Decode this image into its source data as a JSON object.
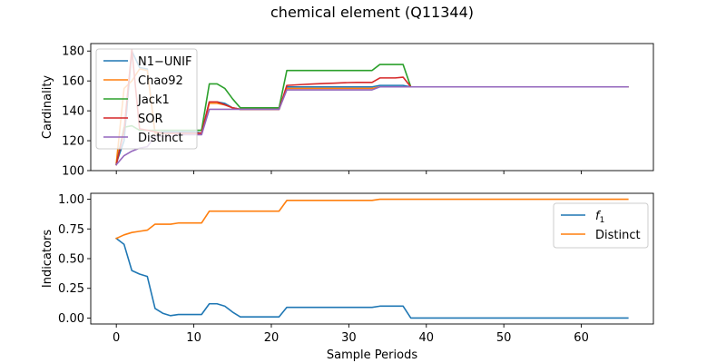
{
  "figure": {
    "title": "chemical element (Q11344)"
  },
  "chart_data": [
    {
      "type": "line",
      "ylabel": "Cardinality",
      "xlabel": "",
      "xlim": [
        -3.3,
        69.3
      ],
      "ylim": [
        100,
        185
      ],
      "yticks": [
        100,
        120,
        140,
        160,
        180
      ],
      "xticks": [
        0,
        10,
        20,
        30,
        40,
        50,
        60
      ],
      "show_x_tick_labels": false,
      "grid": false,
      "legend_position": "top-left",
      "series": [
        {
          "name": "N1−UNIF",
          "color": "#1f77b4",
          "x": [
            0,
            1,
            2,
            3,
            4,
            5,
            6,
            7,
            8,
            9,
            10,
            11,
            12,
            13,
            14,
            15,
            16,
            17,
            18,
            19,
            20,
            21,
            22,
            23,
            24,
            25,
            26,
            27,
            28,
            29,
            30,
            31,
            32,
            33,
            34,
            35,
            36,
            37,
            38,
            39,
            40,
            41,
            42,
            43,
            44,
            45,
            46,
            47,
            48,
            49,
            50,
            51,
            52,
            53,
            54,
            55,
            56,
            57,
            58,
            59,
            60,
            61,
            62,
            63,
            64,
            65,
            66
          ],
          "y": [
            105,
            120,
            180,
            169,
            168,
            125,
            126,
            126,
            126,
            126,
            126,
            125,
            146,
            146,
            145,
            142,
            141,
            141,
            141,
            141,
            141,
            141,
            156,
            156,
            156,
            156,
            156,
            156,
            156,
            156,
            156,
            156,
            156,
            156,
            157,
            157,
            157,
            157,
            156,
            156,
            156,
            156,
            156,
            156,
            156,
            156,
            156,
            156,
            156,
            156,
            156,
            156,
            156,
            156,
            156,
            156,
            156,
            156,
            156,
            156,
            156,
            156,
            156,
            156,
            156,
            156,
            156
          ]
        },
        {
          "name": "Chao92",
          "color": "#ff7f0e",
          "x": [
            0,
            1,
            2,
            3,
            4,
            5,
            6,
            7,
            8,
            9,
            10,
            11,
            12,
            13,
            14,
            15,
            16,
            17,
            18,
            19,
            20,
            21,
            22,
            23,
            24,
            25,
            26,
            27,
            28,
            29,
            30,
            31,
            32,
            33,
            34,
            35,
            36,
            37,
            38,
            39,
            40,
            41,
            42,
            43,
            44,
            45,
            46,
            47,
            48,
            49,
            50,
            51,
            52,
            53,
            54,
            55,
            56,
            57,
            58,
            59,
            60,
            61,
            62,
            63,
            64,
            65,
            66
          ],
          "y": [
            105,
            155,
            160,
            168,
            167,
            125,
            125,
            125,
            125,
            125,
            125,
            125,
            145,
            145,
            144,
            142,
            141,
            141,
            141,
            141,
            141,
            141,
            155,
            155,
            155,
            155,
            155,
            155,
            155,
            155,
            155,
            155,
            155,
            155,
            156,
            156,
            156,
            156,
            156,
            156,
            156,
            156,
            156,
            156,
            156,
            156,
            156,
            156,
            156,
            156,
            156,
            156,
            156,
            156,
            156,
            156,
            156,
            156,
            156,
            156,
            156,
            156,
            156,
            156,
            156,
            156,
            156
          ]
        },
        {
          "name": "Jack1",
          "color": "#2ca02c",
          "x": [
            0,
            1,
            2,
            3,
            4,
            5,
            6,
            7,
            8,
            9,
            10,
            11,
            12,
            13,
            14,
            15,
            16,
            17,
            18,
            19,
            20,
            21,
            22,
            23,
            24,
            25,
            26,
            27,
            28,
            29,
            30,
            31,
            32,
            33,
            34,
            35,
            36,
            37,
            38,
            39,
            40,
            41,
            42,
            43,
            44,
            45,
            46,
            47,
            48,
            49,
            50,
            51,
            52,
            53,
            54,
            55,
            56,
            57,
            58,
            59,
            60,
            61,
            62,
            63,
            64,
            65,
            66
          ],
          "y": [
            104,
            129,
            130,
            127,
            127,
            127,
            127,
            127,
            127,
            127,
            127,
            127,
            158,
            158,
            155,
            148,
            142,
            142,
            142,
            142,
            142,
            142,
            167,
            167,
            167,
            167,
            167,
            167,
            167,
            167,
            167,
            167,
            167,
            167,
            171,
            171,
            171,
            171,
            156,
            156,
            156,
            156,
            156,
            156,
            156,
            156,
            156,
            156,
            156,
            156,
            156,
            156,
            156,
            156,
            156,
            156,
            156,
            156,
            156,
            156,
            156,
            156,
            156,
            156,
            156,
            156,
            156
          ]
        },
        {
          "name": "SOR",
          "color": "#d62728",
          "x": [
            0,
            1,
            2,
            3,
            4,
            5,
            6,
            7,
            8,
            9,
            10,
            11,
            12,
            13,
            14,
            15,
            16,
            17,
            18,
            19,
            20,
            21,
            22,
            23,
            24,
            25,
            26,
            27,
            28,
            29,
            30,
            31,
            32,
            33,
            34,
            35,
            36,
            37,
            38,
            39,
            40,
            41,
            42,
            43,
            44,
            45,
            46,
            47,
            48,
            49,
            50,
            51,
            52,
            53,
            54,
            55,
            56,
            57,
            58,
            59,
            60,
            61,
            62,
            63,
            64,
            65,
            66
          ],
          "y": [
            104,
            127,
            181,
            128,
            127,
            126,
            125,
            125,
            125,
            125,
            125,
            125,
            146,
            146,
            144,
            142,
            141,
            141,
            141,
            141,
            141,
            141,
            157,
            157.3,
            157.6,
            157.9,
            158.1,
            158.3,
            158.5,
            158.7,
            158.9,
            159,
            159,
            159,
            162,
            162,
            162,
            162.5,
            156,
            156,
            156,
            156,
            156,
            156,
            156,
            156,
            156,
            156,
            156,
            156,
            156,
            156,
            156,
            156,
            156,
            156,
            156,
            156,
            156,
            156,
            156,
            156,
            156,
            156,
            156,
            156,
            156
          ]
        },
        {
          "name": "Distinct",
          "color": "#9467bd",
          "x": [
            0,
            1,
            2,
            3,
            4,
            5,
            6,
            7,
            8,
            9,
            10,
            11,
            12,
            13,
            14,
            15,
            16,
            17,
            18,
            19,
            20,
            21,
            22,
            23,
            24,
            25,
            26,
            27,
            28,
            29,
            30,
            31,
            32,
            33,
            34,
            35,
            36,
            37,
            38,
            39,
            40,
            41,
            42,
            43,
            44,
            45,
            46,
            47,
            48,
            49,
            50,
            51,
            52,
            53,
            54,
            55,
            56,
            57,
            58,
            59,
            60,
            61,
            62,
            63,
            64,
            65,
            66
          ],
          "y": [
            104,
            110,
            113,
            115,
            116,
            123,
            123,
            123,
            124,
            124,
            124,
            124,
            141,
            141,
            141,
            141,
            141,
            141,
            141,
            141,
            141,
            141,
            154,
            154,
            154,
            154,
            154,
            154,
            154,
            154,
            154,
            154,
            154,
            154,
            156,
            156,
            156,
            156,
            156,
            156,
            156,
            156,
            156,
            156,
            156,
            156,
            156,
            156,
            156,
            156,
            156,
            156,
            156,
            156,
            156,
            156,
            156,
            156,
            156,
            156,
            156,
            156,
            156,
            156,
            156,
            156,
            156
          ]
        }
      ]
    },
    {
      "type": "line",
      "ylabel": "Indicators",
      "xlabel": "Sample Periods",
      "xlim": [
        -3.3,
        69.3
      ],
      "ylim": [
        -0.05,
        1.05
      ],
      "yticks": [
        0.0,
        0.25,
        0.5,
        0.75,
        1.0
      ],
      "ytick_labels": [
        "0.00",
        "0.25",
        "0.50",
        "0.75",
        "1.00"
      ],
      "xticks": [
        0,
        10,
        20,
        30,
        40,
        50,
        60
      ],
      "xtick_labels": [
        "0",
        "10",
        "20",
        "30",
        "40",
        "50",
        "60"
      ],
      "show_x_tick_labels": true,
      "grid": false,
      "legend_position": "upper-right",
      "series": [
        {
          "name": "f",
          "name_subscript": "1",
          "color": "#1f77b4",
          "x": [
            0,
            1,
            2,
            3,
            4,
            5,
            6,
            7,
            8,
            9,
            10,
            11,
            12,
            13,
            14,
            15,
            16,
            17,
            18,
            19,
            20,
            21,
            22,
            23,
            24,
            25,
            26,
            27,
            28,
            29,
            30,
            31,
            32,
            33,
            34,
            35,
            36,
            37,
            38,
            39,
            40,
            41,
            42,
            43,
            44,
            45,
            46,
            47,
            48,
            49,
            50,
            51,
            52,
            53,
            54,
            55,
            56,
            57,
            58,
            59,
            60,
            61,
            62,
            63,
            64,
            65,
            66
          ],
          "y": [
            0.67,
            0.62,
            0.4,
            0.37,
            0.35,
            0.08,
            0.04,
            0.02,
            0.03,
            0.03,
            0.03,
            0.03,
            0.12,
            0.12,
            0.1,
            0.05,
            0.01,
            0.01,
            0.01,
            0.01,
            0.01,
            0.01,
            0.09,
            0.09,
            0.09,
            0.09,
            0.09,
            0.09,
            0.09,
            0.09,
            0.09,
            0.09,
            0.09,
            0.09,
            0.1,
            0.1,
            0.1,
            0.1,
            0,
            0,
            0,
            0,
            0,
            0,
            0,
            0,
            0,
            0,
            0,
            0,
            0,
            0,
            0,
            0,
            0,
            0,
            0,
            0,
            0,
            0,
            0,
            0,
            0,
            0,
            0,
            0,
            0
          ]
        },
        {
          "name": "Distinct",
          "color": "#ff7f0e",
          "x": [
            0,
            1,
            2,
            3,
            4,
            5,
            6,
            7,
            8,
            9,
            10,
            11,
            12,
            13,
            14,
            15,
            16,
            17,
            18,
            19,
            20,
            21,
            22,
            23,
            24,
            25,
            26,
            27,
            28,
            29,
            30,
            31,
            32,
            33,
            34,
            35,
            36,
            37,
            38,
            39,
            40,
            41,
            42,
            43,
            44,
            45,
            46,
            47,
            48,
            49,
            50,
            51,
            52,
            53,
            54,
            55,
            56,
            57,
            58,
            59,
            60,
            61,
            62,
            63,
            64,
            65,
            66
          ],
          "y": [
            0.67,
            0.7,
            0.72,
            0.73,
            0.74,
            0.79,
            0.79,
            0.79,
            0.8,
            0.8,
            0.8,
            0.8,
            0.9,
            0.9,
            0.9,
            0.9,
            0.9,
            0.9,
            0.9,
            0.9,
            0.9,
            0.9,
            0.99,
            0.99,
            0.99,
            0.99,
            0.99,
            0.99,
            0.99,
            0.99,
            0.99,
            0.99,
            0.99,
            0.99,
            1,
            1,
            1,
            1,
            1,
            1,
            1,
            1,
            1,
            1,
            1,
            1,
            1,
            1,
            1,
            1,
            1,
            1,
            1,
            1,
            1,
            1,
            1,
            1,
            1,
            1,
            1,
            1,
            1,
            1,
            1,
            1,
            1
          ]
        }
      ]
    }
  ]
}
